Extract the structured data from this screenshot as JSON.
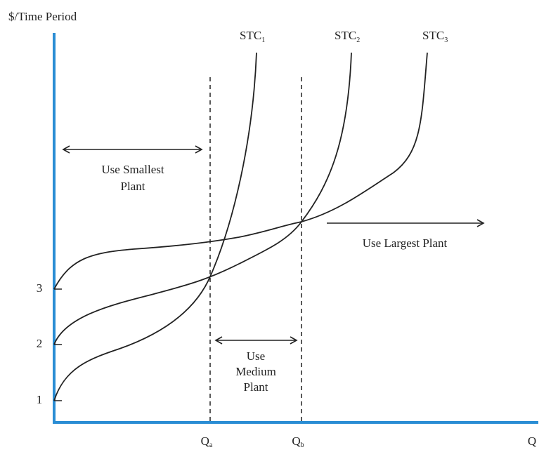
{
  "axes": {
    "y_label": "$/Time Period",
    "x_label": "Q",
    "y_ticks": [
      "1",
      "2",
      "3"
    ]
  },
  "curves": [
    {
      "label": "STC",
      "subscript": "1"
    },
    {
      "label": "STC",
      "subscript": "2"
    },
    {
      "label": "STC",
      "subscript": "3"
    }
  ],
  "quantities": [
    {
      "label": "Q",
      "subscript": "a"
    },
    {
      "label": "Q",
      "subscript": "b"
    }
  ],
  "regions": [
    {
      "lines": [
        "Use Smallest",
        "Plant"
      ]
    },
    {
      "lines": [
        "Use",
        "Medium",
        "Plant"
      ]
    },
    {
      "lines": [
        "Use Largest Plant"
      ]
    }
  ]
}
